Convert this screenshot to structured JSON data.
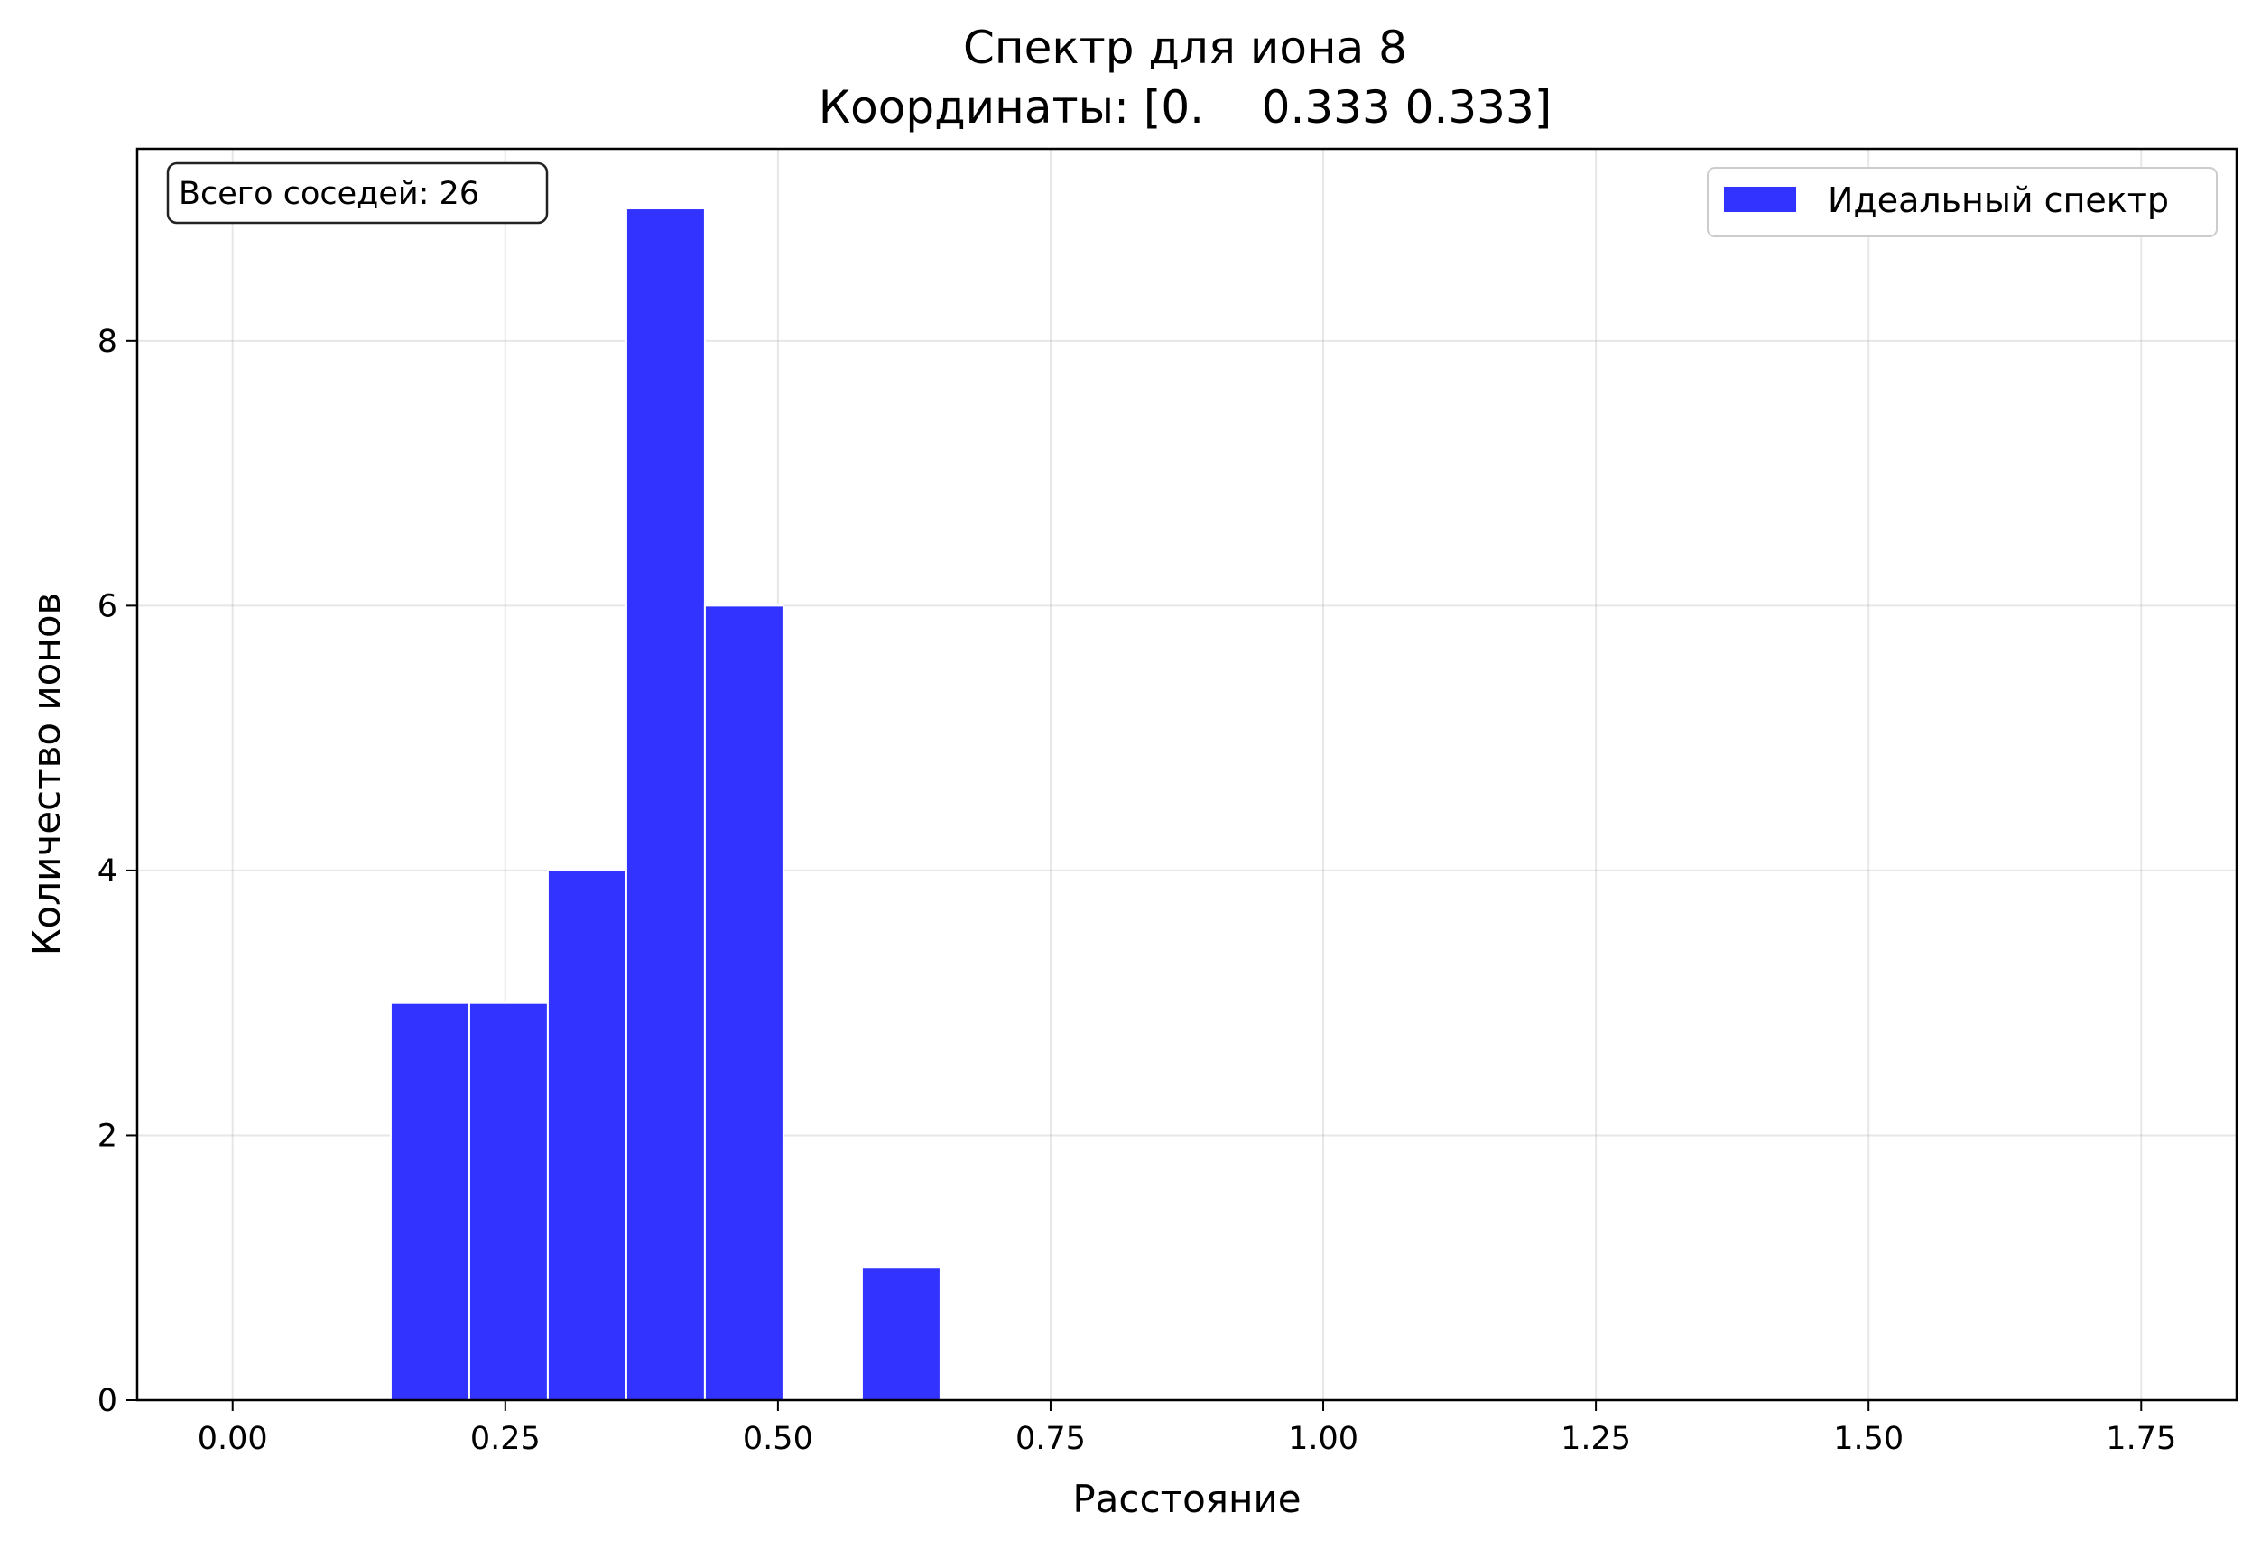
{
  "chart_data": {
    "type": "bar",
    "title": "Спектр для иона 8",
    "subtitle": "Координаты: [0.    0.333 0.333]",
    "xlabel": "Расстояние",
    "ylabel": "Количество ионов",
    "xlim": [
      -0.0875,
      1.8375
    ],
    "ylim": [
      0,
      9.45
    ],
    "xticks": [
      0.0,
      0.25,
      0.5,
      0.75,
      1.0,
      1.25,
      1.5,
      1.75
    ],
    "xtick_labels": [
      "0.00",
      "0.25",
      "0.50",
      "0.75",
      "1.00",
      "1.25",
      "1.50",
      "1.75"
    ],
    "yticks": [
      0,
      2,
      4,
      6,
      8
    ],
    "ytick_labels": [
      "0",
      "2",
      "4",
      "6",
      "8"
    ],
    "grid": true,
    "legend_position": "top-right",
    "annotation": "Всего соседей: 26",
    "bar_color": "#3333ff",
    "series": [
      {
        "name": "Идеальный спектр",
        "bins": [
          {
            "x0": 0.145,
            "x1": 0.217,
            "value": 3
          },
          {
            "x0": 0.217,
            "x1": 0.289,
            "value": 3
          },
          {
            "x0": 0.289,
            "x1": 0.361,
            "value": 4
          },
          {
            "x0": 0.361,
            "x1": 0.433,
            "value": 9
          },
          {
            "x0": 0.433,
            "x1": 0.505,
            "value": 6
          },
          {
            "x0": 0.577,
            "x1": 0.649,
            "value": 1
          }
        ]
      }
    ]
  }
}
